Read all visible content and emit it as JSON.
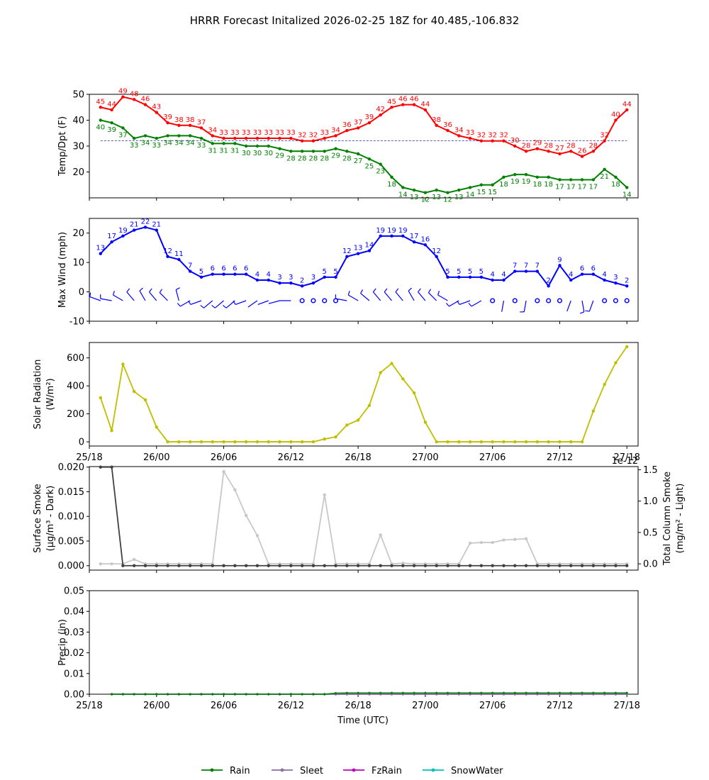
{
  "title": "HRRR Forecast Initalized 2026-02-25 18Z for 40.485,-106.832",
  "xlabel": "Time (UTC)",
  "time_ticks": [
    "25/18",
    "26/00",
    "26/06",
    "26/12",
    "26/18",
    "27/00",
    "27/06",
    "27/12",
    "27/18"
  ],
  "colors": {
    "temp": "#ff0000",
    "dewpoint": "#008000",
    "wind": "#0000ff",
    "solar": "#bfbf00",
    "smoke_dark": "#404040",
    "smoke_light": "#c8c8c8",
    "rain": "#008000",
    "sleet": "#8a6fa0",
    "fzrain": "#bf00bf",
    "snow": "#00bfbf"
  },
  "chart_data": [
    {
      "id": "temp",
      "type": "line",
      "ylabel": "Temp/Dpt (F)",
      "ylim": [
        10,
        50
      ],
      "yticks": [
        20,
        30,
        40,
        50
      ],
      "hours": [
        1,
        48
      ],
      "freezing_line": 32,
      "series": [
        {
          "name": "Temperature",
          "values": [
            45,
            44,
            49,
            48,
            46,
            43,
            39,
            38,
            38,
            37,
            34,
            33,
            33,
            33,
            33,
            33,
            33,
            33,
            32,
            32,
            33,
            34,
            36,
            37,
            39,
            42,
            45,
            46,
            46,
            44,
            38,
            36,
            34,
            33,
            32,
            32,
            32,
            30,
            28,
            29,
            28,
            27,
            28,
            26,
            28,
            32,
            40,
            44
          ]
        },
        {
          "name": "Dewpoint",
          "values": [
            40,
            39,
            37,
            33,
            34,
            33,
            34,
            34,
            34,
            33,
            31,
            31,
            31,
            30,
            30,
            30,
            29,
            28,
            28,
            28,
            28,
            29,
            28,
            27,
            25,
            23,
            18,
            14,
            13,
            12,
            13,
            12,
            13,
            14,
            15,
            15,
            18,
            19,
            19,
            18,
            18,
            17,
            17,
            17,
            17,
            21,
            18,
            14
          ]
        }
      ]
    },
    {
      "id": "wind",
      "type": "line",
      "ylabel": "Max Wind (mph)",
      "ylim": [
        -10,
        25
      ],
      "yticks": [
        -10,
        0,
        10,
        20
      ],
      "hours": [
        1,
        48
      ],
      "series": [
        {
          "name": "Max Wind",
          "values": [
            13,
            17,
            19,
            21,
            22,
            21,
            12,
            11,
            7,
            5,
            6,
            6,
            6,
            6,
            4,
            4,
            3,
            3,
            2,
            3,
            5,
            5,
            12,
            13,
            14,
            19,
            19,
            19,
            17,
            16,
            12,
            5,
            5,
            5,
            5,
            4,
            4,
            7,
            7,
            7,
            2,
            9,
            4,
            6,
            6,
            4,
            3,
            2
          ]
        }
      ],
      "barb_directions_deg": [
        290,
        280,
        300,
        320,
        330,
        320,
        315,
        345,
        240,
        250,
        230,
        230,
        230,
        250,
        235,
        250,
        255,
        270,
        0,
        0,
        0,
        0,
        280,
        300,
        310,
        320,
        320,
        320,
        330,
        320,
        315,
        300,
        240,
        250,
        240,
        0,
        190,
        0,
        190,
        0,
        0,
        0,
        200,
        170,
        200,
        0,
        0,
        0
      ],
      "barb_calm_symbol": "o"
    },
    {
      "id": "solar",
      "type": "line",
      "ylabel": "Solar Radiation (W/m²)",
      "ylim": [
        -30,
        710
      ],
      "yticks": [
        0,
        200,
        400,
        600
      ],
      "hours": [
        1,
        48
      ],
      "series": [
        {
          "name": "Solar Radiation",
          "values": [
            315,
            80,
            555,
            360,
            300,
            105,
            0,
            0,
            0,
            0,
            0,
            0,
            0,
            0,
            0,
            0,
            0,
            0,
            0,
            0,
            20,
            35,
            120,
            155,
            260,
            495,
            560,
            450,
            350,
            140,
            0,
            0,
            0,
            0,
            0,
            0,
            0,
            0,
            0,
            0,
            0,
            0,
            0,
            0,
            220,
            410,
            565,
            680
          ]
        }
      ]
    },
    {
      "id": "smoke",
      "type": "line",
      "ylabel": "Surface Smoke (μg/m³ - Dark)",
      "ylabel_right": "Total Column Smoke (mg/m² - Light)",
      "ylim": [
        -0.0009,
        0.0201
      ],
      "yticks": [
        0.0,
        0.005,
        0.01,
        0.015,
        0.02
      ],
      "ytick_labels": [
        "0.000",
        "0.005",
        "0.010",
        "0.015",
        "0.020"
      ],
      "ylim_right": [
        -0.1,
        1.55
      ],
      "yticks_right": [
        0.0,
        0.5,
        1.0,
        1.5
      ],
      "ytick_labels_right": [
        "0.0",
        "0.5",
        "1.0",
        "1.5"
      ],
      "right_offset": "1e-12",
      "hours": [
        1,
        48
      ],
      "series": [
        {
          "name": "Surface Smoke",
          "axis": "left",
          "values": [
            0.02,
            0.02,
            0,
            0,
            0,
            0,
            0,
            0,
            0,
            0,
            0,
            0,
            0,
            0,
            0,
            0,
            0,
            0,
            0,
            0,
            0,
            0,
            0,
            0,
            0,
            0,
            0,
            0,
            0,
            0,
            0,
            0,
            0,
            0,
            0,
            0,
            0,
            0,
            0,
            0,
            0,
            0,
            0,
            0,
            0,
            0,
            0,
            0
          ]
        },
        {
          "name": "Total Column Smoke",
          "axis": "right",
          "values": [
            0,
            0,
            0,
            0.07,
            0,
            0,
            0,
            0,
            0,
            0,
            0,
            1.47,
            1.18,
            0.77,
            0.45,
            0,
            0,
            0,
            0,
            0,
            1.1,
            0,
            0,
            0,
            0,
            0.46,
            0,
            0.01,
            0,
            0,
            0,
            0,
            0,
            0.33,
            0.34,
            0.34,
            0.38,
            0.39,
            0.4,
            0,
            0,
            0,
            0,
            0,
            0,
            0,
            0,
            0
          ]
        }
      ]
    },
    {
      "id": "precip",
      "type": "line",
      "ylabel": "Precip (in)",
      "ylim": [
        0,
        0.05
      ],
      "yticks": [
        0.0,
        0.01,
        0.02,
        0.03,
        0.04,
        0.05
      ],
      "ytick_labels": [
        "0.00",
        "0.01",
        "0.02",
        "0.03",
        "0.04",
        "0.05"
      ],
      "hours": [
        2,
        48
      ],
      "series": [
        {
          "name": "Rain",
          "values": [
            0,
            0,
            0,
            0,
            0,
            0,
            0,
            0,
            0,
            0,
            0,
            0,
            0,
            0,
            0,
            0,
            0,
            0,
            0,
            0,
            0.0005,
            0.0006,
            0.0006,
            0.0006,
            0.0006,
            0.0006,
            0.0006,
            0.0006,
            0.0006,
            0.0006,
            0.0006,
            0.0006,
            0.0006,
            0.0006,
            0.0006,
            0.0006,
            0.0006,
            0.0006,
            0.0006,
            0.0006,
            0.0006,
            0.0006,
            0.0006,
            0.0006,
            0.0006,
            0.0006,
            0.0006
          ]
        },
        {
          "name": "Sleet",
          "values": [
            0,
            0,
            0,
            0,
            0,
            0,
            0,
            0,
            0,
            0,
            0,
            0,
            0,
            0,
            0,
            0,
            0,
            0,
            0,
            0,
            0,
            0,
            0,
            0,
            0,
            0,
            0,
            0,
            0,
            0,
            0,
            0,
            0,
            0,
            0,
            0,
            0,
            0,
            0,
            0,
            0,
            0,
            0,
            0,
            0,
            0,
            0
          ]
        },
        {
          "name": "FzRain",
          "values": [
            0,
            0,
            0,
            0,
            0,
            0,
            0,
            0,
            0,
            0,
            0,
            0,
            0,
            0,
            0,
            0,
            0,
            0,
            0,
            0,
            0,
            0,
            0,
            0,
            0,
            0,
            0,
            0,
            0,
            0,
            0,
            0,
            0,
            0,
            0,
            0,
            0,
            0,
            0,
            0,
            0,
            0,
            0,
            0,
            0,
            0,
            0
          ]
        },
        {
          "name": "SnowWater",
          "values": [
            0,
            0,
            0,
            0,
            0,
            0,
            0,
            0,
            0,
            0,
            0,
            0,
            0,
            0,
            0,
            0,
            0,
            0,
            0,
            0,
            0,
            0,
            0,
            0,
            0,
            0,
            0,
            0,
            0,
            0,
            0,
            0,
            0,
            0,
            0,
            0,
            0,
            0,
            0,
            0,
            0,
            0,
            0,
            0,
            0,
            0,
            0
          ]
        }
      ]
    }
  ],
  "legend": [
    "Rain",
    "Sleet",
    "FzRain",
    "SnowWater"
  ]
}
